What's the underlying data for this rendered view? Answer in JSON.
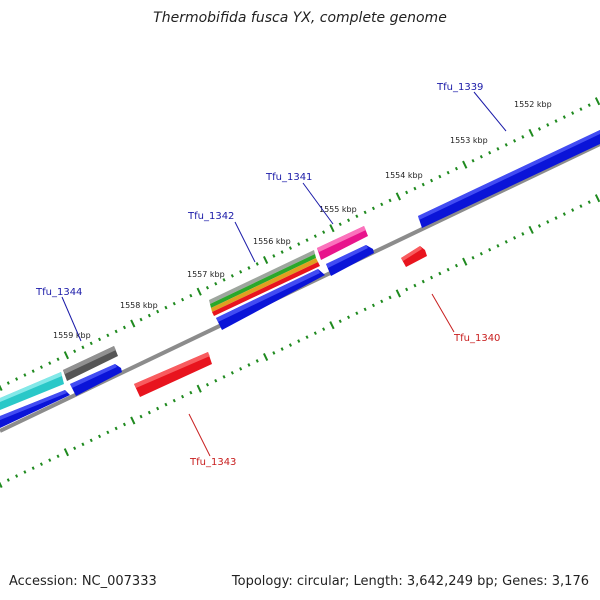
{
  "title": "Thermobifida fusca YX, complete genome",
  "footer": {
    "accession": "Accession: NC_007333",
    "summary": "Topology: circular; Length: 3,642,249 bp; Genes: 3,176"
  },
  "colors": {
    "backbone": "#8c8c8c",
    "tick": "#1f8a1f",
    "forward_label": "#1a1aa8",
    "reverse_label": "#c81e1e",
    "blue": "#0a14d8",
    "red": "#e8141e",
    "magenta": "#e8148c",
    "cyan": "#2ac8c8",
    "gray": "#555555"
  },
  "kbp_labels": [
    "1552 kbp",
    "1553 kbp",
    "1554 kbp",
    "1555 kbp",
    "1556 kbp",
    "1557 kbp",
    "1558 kbp",
    "1559 kbp"
  ],
  "genes": [
    {
      "label": "Tfu_1339",
      "strand": "forward"
    },
    {
      "label": "Tfu_1340",
      "strand": "reverse"
    },
    {
      "label": "Tfu_1341",
      "strand": "forward"
    },
    {
      "label": "Tfu_1342",
      "strand": "forward"
    },
    {
      "label": "Tfu_1343",
      "strand": "reverse"
    },
    {
      "label": "Tfu_1344",
      "strand": "forward"
    }
  ]
}
